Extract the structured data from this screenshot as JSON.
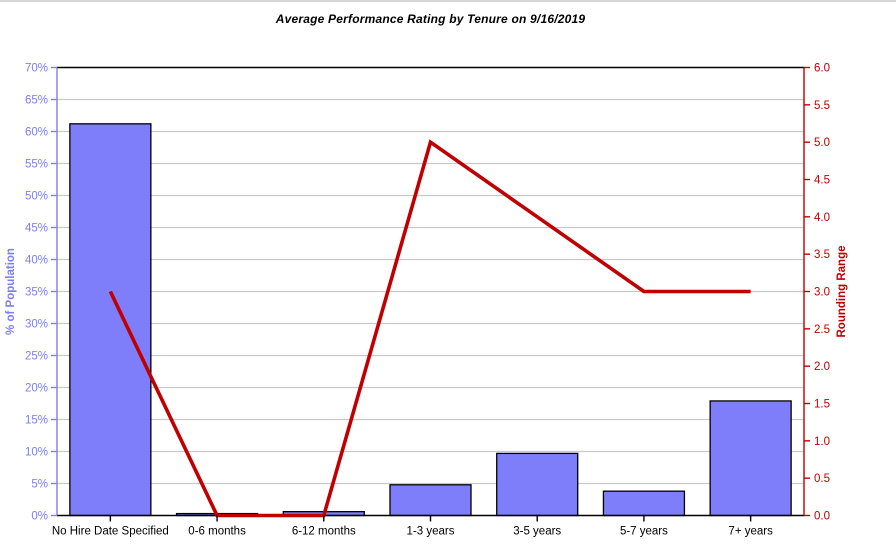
{
  "page": {
    "title": "Average Performance Rating by Tenure on 9/16/2019"
  },
  "chart_data": {
    "type": "bar+line",
    "title": "Average Performance Rating by Tenure on 9/16/2019",
    "categories": [
      "No Hire Date Specified",
      "0-6 months",
      "6-12 months",
      "1-3 years",
      "3-5 years",
      "5-7 years",
      "7+ years"
    ],
    "series": [
      {
        "name": "% of Population",
        "type": "bar",
        "axis": "left",
        "values": [
          61.2,
          0.3,
          0.6,
          4.8,
          9.7,
          3.8,
          17.9
        ],
        "fill_color": "#7e7efb",
        "border_color": "#000000"
      },
      {
        "name": "Rounding Range",
        "type": "line",
        "axis": "right",
        "values": [
          3.0,
          0.0,
          0.0,
          5.0,
          4.0,
          3.0,
          3.0
        ],
        "line_color": "#c00000"
      }
    ],
    "left_axis": {
      "label": "% of Population",
      "min": 0,
      "max": 70,
      "step": 5,
      "tick_values": [
        0,
        5,
        10,
        15,
        20,
        25,
        30,
        35,
        40,
        45,
        50,
        55,
        60,
        65,
        70
      ],
      "tick_labels": [
        "0%",
        "5%",
        "10%",
        "15%",
        "20%",
        "25%",
        "30%",
        "35%",
        "40%",
        "45%",
        "50%",
        "55%",
        "60%",
        "65%",
        "70%"
      ],
      "color": "#7d7df6"
    },
    "right_axis": {
      "label": "Rounding Range",
      "min": 0,
      "max": 6,
      "step": 0.5,
      "tick_values": [
        0,
        0.5,
        1,
        1.5,
        2,
        2.5,
        3,
        3.5,
        4,
        4.5,
        5,
        5.5,
        6
      ],
      "tick_labels": [
        "0.0",
        "0.5",
        "1.0",
        "1.5",
        "2.0",
        "2.5",
        "3.0",
        "3.5",
        "4.0",
        "4.5",
        "5.0",
        "5.5",
        "6.0"
      ],
      "color": "#c00000"
    },
    "grid": true,
    "gridline_color": "#c9c9c9",
    "frame_color": "#000000",
    "legend": "none"
  }
}
